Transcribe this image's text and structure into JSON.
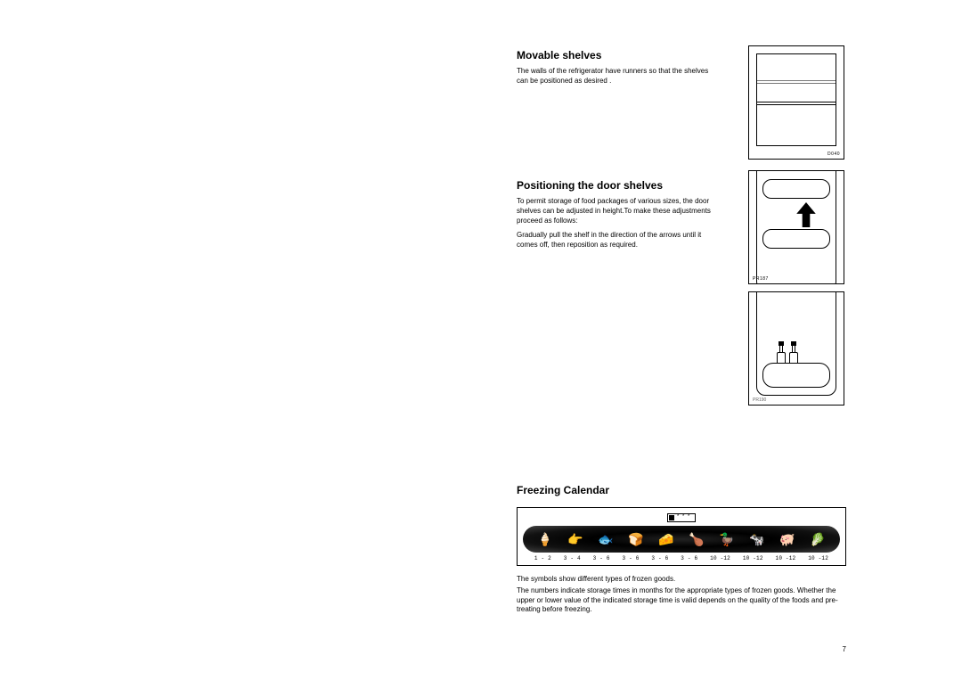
{
  "page_number": "7",
  "movable": {
    "title": "Movable shelves",
    "text": "The walls of the refrigerator have runners so that the shelves can be positioned as desired .",
    "fig_label": "D040"
  },
  "door": {
    "title": "Positioning the door shelves",
    "p1": "To permit storage of food packages of various sizes, the door shelves can be adjusted in height.To make these adjustments proceed as follows:",
    "p2": "Gradually pull the shelf in the direction of the arrows until it comes off, then reposition as required.",
    "fig2_label": "PR187",
    "fig3_label": "PR190"
  },
  "freeze": {
    "title": "Freezing Calendar",
    "rating_stars": "* * *",
    "icons": [
      "🍦",
      "👉",
      "🐟",
      "🍞",
      "🧀",
      "🍗",
      "🦆",
      "🐄",
      "🐖",
      "🥬"
    ],
    "ranges": [
      "1 - 2",
      "3 - 4",
      "3 - 6",
      "3 - 6",
      "3 - 6",
      "3 - 6",
      "10 -12",
      "10 -12",
      "10 -12",
      "10 -12"
    ],
    "note1": "The symbols show different types of frozen goods.",
    "note2": "The numbers indicate storage times in months for the appropriate types of frozen goods. Whether the upper or lower value of the indicated storage time is valid depends on the quality of the foods and pre-treating before freezing."
  }
}
